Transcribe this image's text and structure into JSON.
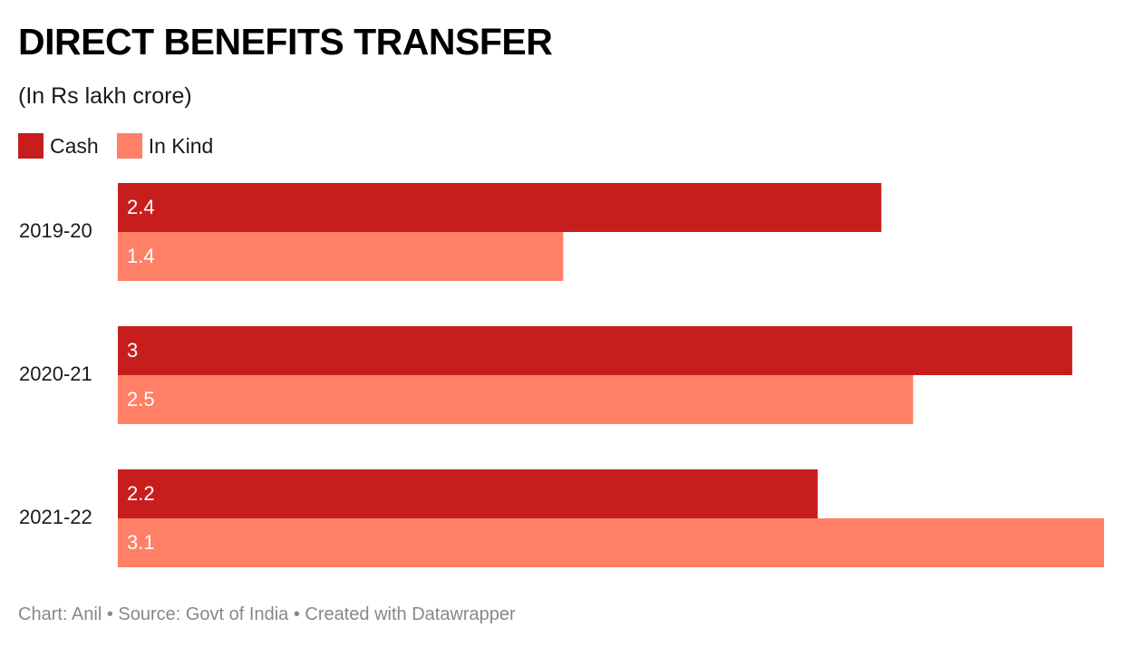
{
  "chart_data": {
    "type": "bar",
    "orientation": "horizontal",
    "title": "DIRECT BENEFITS TRANSFER",
    "subtitle": "(In Rs lakh crore)",
    "categories": [
      "2019-20",
      "2020-21",
      "2021-22"
    ],
    "series": [
      {
        "name": "Cash",
        "values": [
          2.4,
          3,
          2.2
        ],
        "labels": [
          "2.4",
          "3",
          "2.2"
        ],
        "color": "#c71e1d"
      },
      {
        "name": "In Kind",
        "values": [
          1.4,
          2.5,
          3.1
        ],
        "labels": [
          "1.4",
          "2.5",
          "3.1"
        ],
        "color": "#ff8066"
      }
    ],
    "xlim": [
      0,
      3.1
    ],
    "grid": false,
    "legend_position": "top-left",
    "data_labels": "inside-left",
    "label_color": "#ffffff"
  },
  "footer": "Chart: Anil • Source: Govt of India • Created with Datawrapper"
}
